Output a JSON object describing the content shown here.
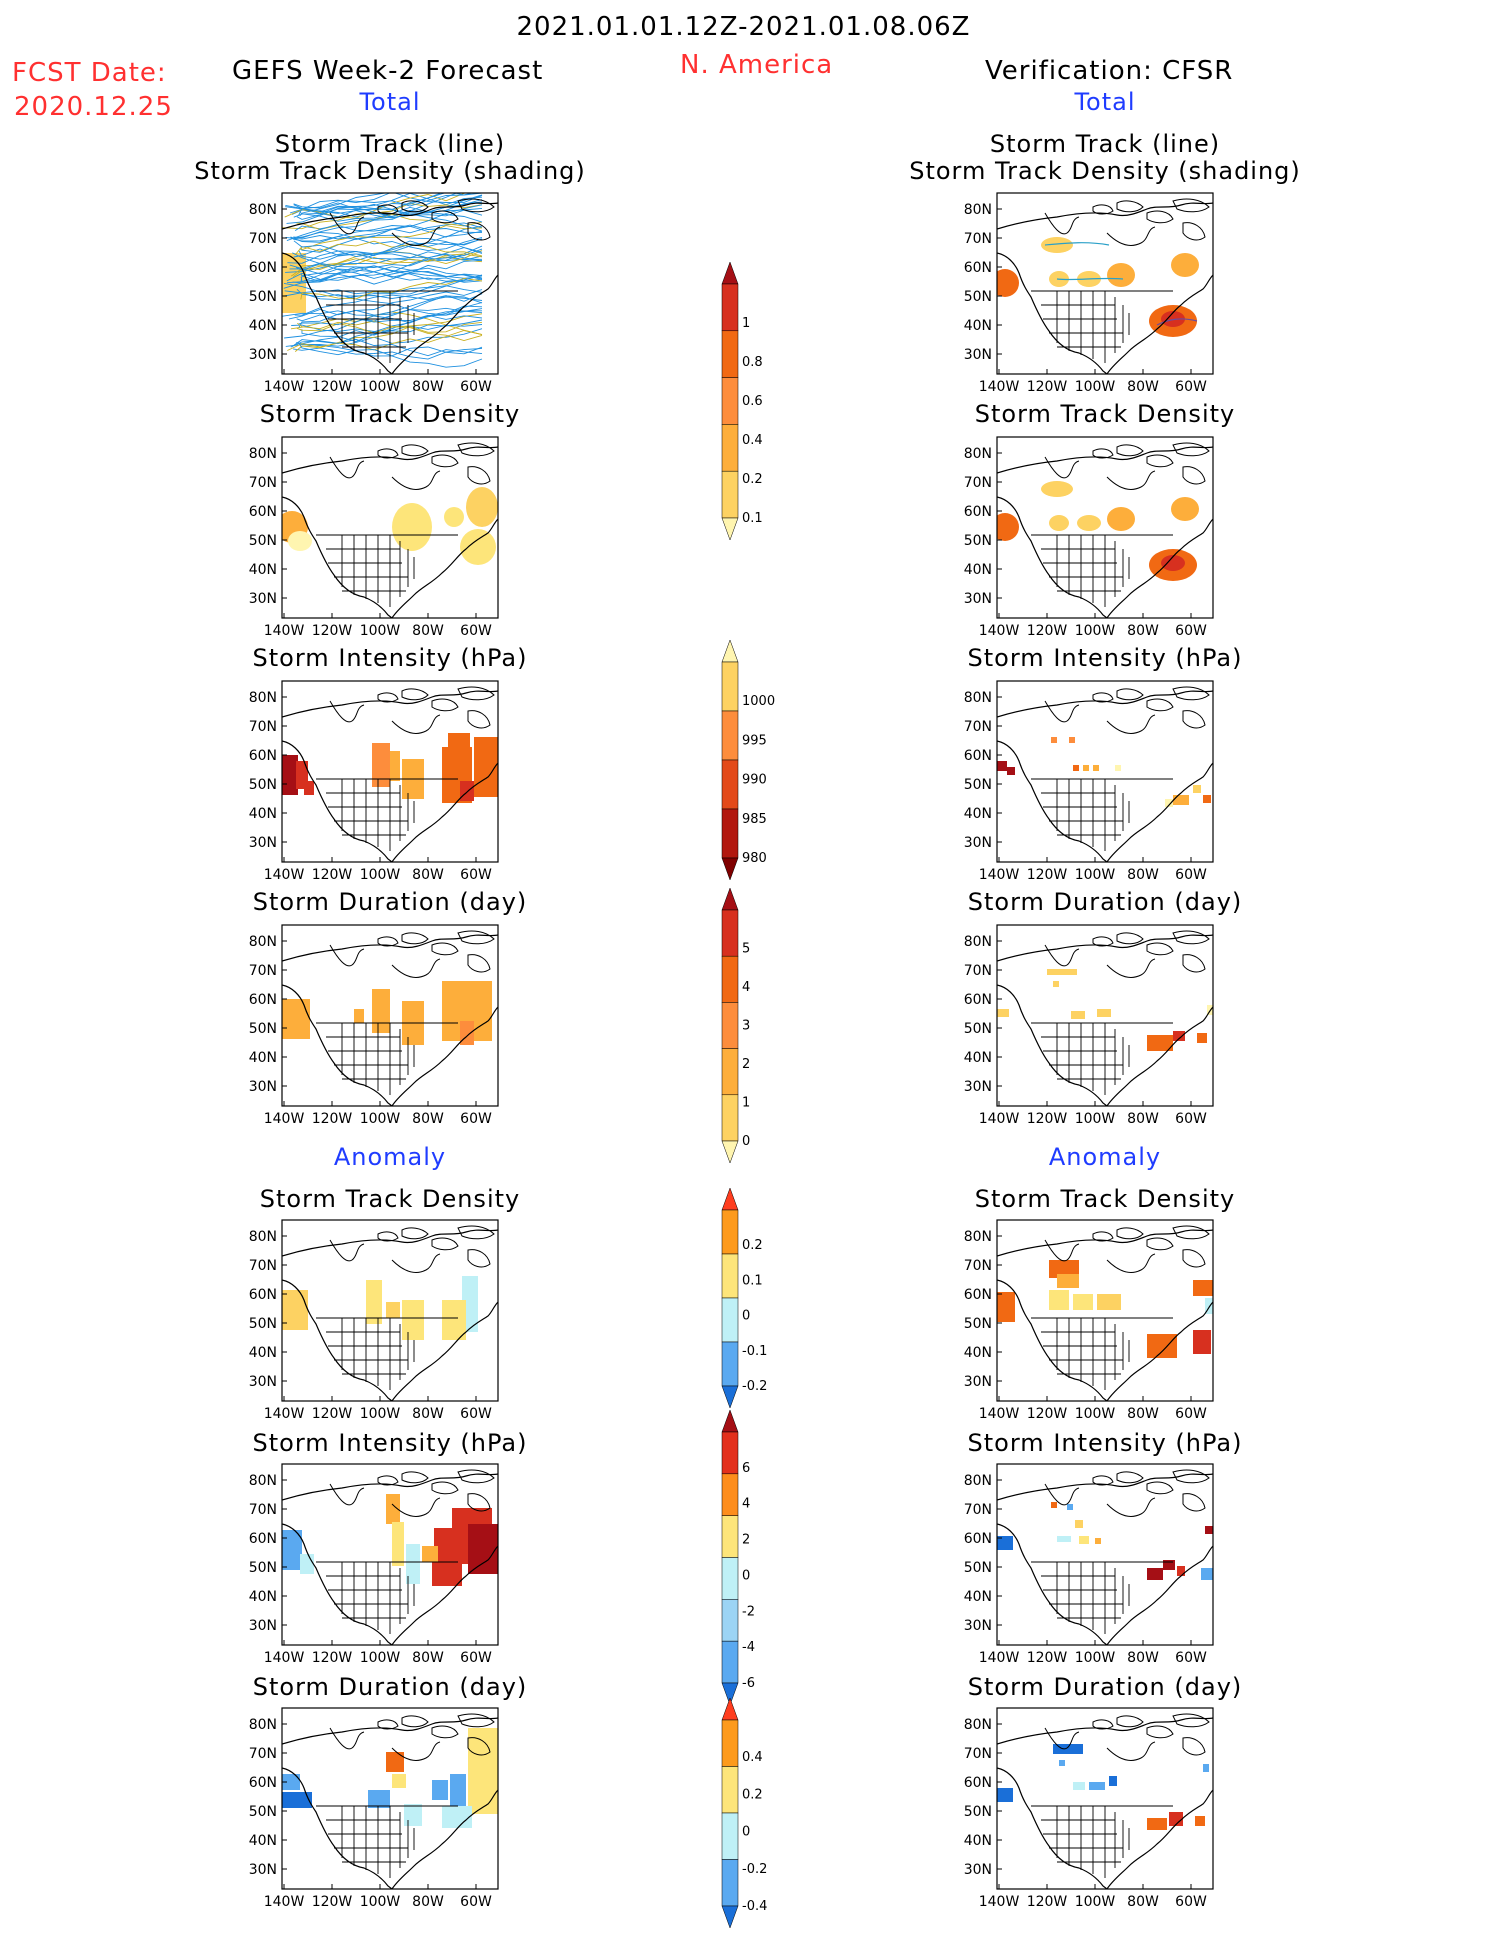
{
  "header": {
    "period": "2021.01.01.12Z-2021.01.08.06Z",
    "fcst_label": "FCST Date:",
    "fcst_date": "2020.12.25",
    "left_title": "GEFS Week-2 Forecast",
    "region": "N. America",
    "right_title": "Verification: CFSR"
  },
  "sections": {
    "total": "Total",
    "anomaly": "Anomaly"
  },
  "panel_titles": {
    "track_line": "Storm Track (line)",
    "track_shading": "Storm Track Density (shading)",
    "density": "Storm Track Density",
    "intensity": "Storm Intensity (hPa)",
    "duration": "Storm Duration (day)"
  },
  "axes": {
    "lat": [
      "80N",
      "70N",
      "60N",
      "50N",
      "40N",
      "30N"
    ],
    "lon": [
      "140W",
      "120W",
      "100W",
      "80W",
      "60W"
    ]
  },
  "colorbars": [
    {
      "id": "density-total",
      "labels": [
        "1",
        "0.8",
        "0.6",
        "0.4",
        "0.2",
        "0.1"
      ],
      "colors": [
        "#a50f15",
        "#d7301f",
        "#f16913",
        "#fd8d3c",
        "#fdae3b",
        "#fdd262",
        "#fff5b0"
      ]
    },
    {
      "id": "intensity-total",
      "labels": [
        "1000",
        "995",
        "990",
        "985",
        "980"
      ],
      "colors": [
        "#fff5b0",
        "#fdd262",
        "#fd8d3c",
        "#e34a1a",
        "#b2180f",
        "#7f0000"
      ]
    },
    {
      "id": "duration-total",
      "labels": [
        "5",
        "4",
        "3",
        "2",
        "1",
        "0"
      ],
      "colors": [
        "#a50f15",
        "#d7301f",
        "#f16913",
        "#fd8d3c",
        "#fdae3b",
        "#fdd262",
        "#fff5b0"
      ]
    },
    {
      "id": "density-anom",
      "labels": [
        "0.2",
        "0.1",
        "0",
        "-0.1",
        "-0.2"
      ],
      "colors": [
        "#ff3d1f",
        "#fd9a1c",
        "#fde57a",
        "#bff0f6",
        "#5aa9f0",
        "#1a6fd8"
      ]
    },
    {
      "id": "intensity-anom",
      "labels": [
        "6",
        "4",
        "2",
        "0",
        "-2",
        "-4",
        "-6"
      ],
      "colors": [
        "#a50f15",
        "#e3301c",
        "#fd8d1c",
        "#fde57a",
        "#bff0f6",
        "#9cd4f4",
        "#5aa9f0",
        "#1a6fd8"
      ]
    },
    {
      "id": "duration-anom",
      "labels": [
        "0.4",
        "0.2",
        "0",
        "-0.2",
        "-0.4"
      ],
      "colors": [
        "#ff3d1f",
        "#fd9a1c",
        "#fde57a",
        "#bff0f6",
        "#5aa9f0",
        "#1a6fd8"
      ]
    }
  ]
}
